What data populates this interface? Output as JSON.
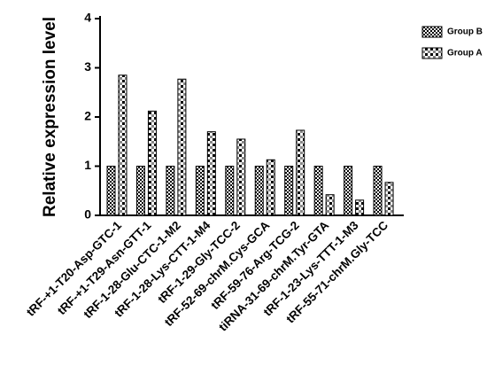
{
  "chart_data": {
    "type": "bar",
    "y_label": "Relative expression level",
    "categories": [
      "tRF-+1-T20-Asp-GTC-1",
      "tRF-+1-T29-Asn-GTT-1",
      "tRF-1-28-Glu-CTC-1-M2",
      "tRF-1-28-Lys-CTT-1-M4",
      "tRF-1-29-Gly-TCC-2",
      "tRF-52-69-chrM.Cys-GCA",
      "tRF-59-76-Arg-TCG-2",
      "tiRNA-31-69-chrM.Tyr-GTA",
      "tRF-1-23-Lys-TTT-1-M3",
      "tRF-55-71-chrM.Gly-TCC"
    ],
    "series": [
      {
        "name": "Group B",
        "color": "#000000",
        "values": [
          1,
          1,
          1,
          1,
          1,
          1,
          1,
          1,
          1,
          1
        ]
      },
      {
        "name": "Group A",
        "color": "#000000",
        "values": [
          2.85,
          2.12,
          2.77,
          1.7,
          1.55,
          1.13,
          1.73,
          0.42,
          0.31,
          0.67
        ]
      }
    ],
    "ylim": [
      0,
      4
    ],
    "yticks": [
      0,
      1,
      2,
      3,
      4
    ],
    "legend": "top-right"
  }
}
